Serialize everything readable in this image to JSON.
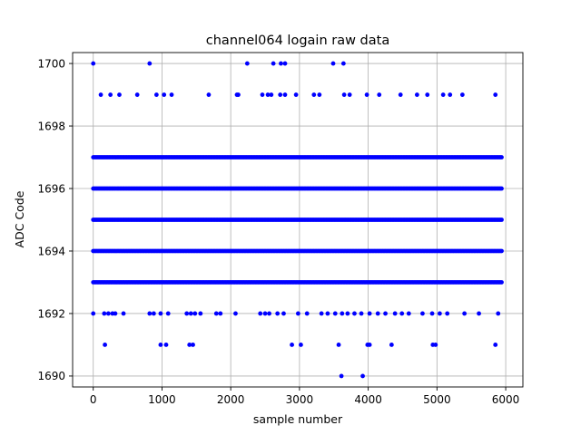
{
  "chart_data": {
    "type": "scatter",
    "title": "channel064 logain raw data",
    "xlabel": "sample number",
    "ylabel": "ADC Code",
    "xlim": [
      -300,
      6250
    ],
    "ylim": [
      1689.65,
      1700.35
    ],
    "xticks": [
      0,
      1000,
      2000,
      3000,
      4000,
      5000,
      6000
    ],
    "yticks": [
      1690,
      1692,
      1694,
      1696,
      1698,
      1700
    ],
    "grid": true,
    "marker_color": "#0000ff",
    "series": [
      {
        "name": "",
        "dense_levels": [
          {
            "y": 1693,
            "x_range": [
              0,
              5940
            ]
          },
          {
            "y": 1694,
            "x_range": [
              0,
              5940
            ]
          },
          {
            "y": 1695,
            "x_range": [
              0,
              5940
            ]
          },
          {
            "y": 1696,
            "x_range": [
              0,
              5940
            ]
          },
          {
            "y": 1697,
            "x_range": [
              0,
              5940
            ]
          }
        ],
        "points": [
          [
            0,
            1700
          ],
          [
            820,
            1700
          ],
          [
            2240,
            1700
          ],
          [
            2620,
            1700
          ],
          [
            2730,
            1700
          ],
          [
            2790,
            1700
          ],
          [
            3490,
            1700
          ],
          [
            3640,
            1700
          ],
          [
            110,
            1699
          ],
          [
            250,
            1699
          ],
          [
            380,
            1699
          ],
          [
            640,
            1699
          ],
          [
            920,
            1699
          ],
          [
            1030,
            1699
          ],
          [
            1140,
            1699
          ],
          [
            1680,
            1699
          ],
          [
            2090,
            1699
          ],
          [
            2110,
            1699
          ],
          [
            2460,
            1699
          ],
          [
            2540,
            1699
          ],
          [
            2590,
            1699
          ],
          [
            2720,
            1699
          ],
          [
            2790,
            1699
          ],
          [
            2950,
            1699
          ],
          [
            3210,
            1699
          ],
          [
            3290,
            1699
          ],
          [
            3650,
            1699
          ],
          [
            3730,
            1699
          ],
          [
            3980,
            1699
          ],
          [
            4160,
            1699
          ],
          [
            4470,
            1699
          ],
          [
            4710,
            1699
          ],
          [
            4860,
            1699
          ],
          [
            5090,
            1699
          ],
          [
            5190,
            1699
          ],
          [
            5370,
            1699
          ],
          [
            5850,
            1699
          ],
          [
            0,
            1692
          ],
          [
            160,
            1692
          ],
          [
            220,
            1692
          ],
          [
            280,
            1692
          ],
          [
            320,
            1692
          ],
          [
            440,
            1692
          ],
          [
            820,
            1692
          ],
          [
            880,
            1692
          ],
          [
            980,
            1692
          ],
          [
            1090,
            1692
          ],
          [
            1360,
            1692
          ],
          [
            1420,
            1692
          ],
          [
            1480,
            1692
          ],
          [
            1560,
            1692
          ],
          [
            1790,
            1692
          ],
          [
            1850,
            1692
          ],
          [
            2070,
            1692
          ],
          [
            2430,
            1692
          ],
          [
            2500,
            1692
          ],
          [
            2560,
            1692
          ],
          [
            2680,
            1692
          ],
          [
            2770,
            1692
          ],
          [
            2980,
            1692
          ],
          [
            3110,
            1692
          ],
          [
            3320,
            1692
          ],
          [
            3410,
            1692
          ],
          [
            3520,
            1692
          ],
          [
            3620,
            1692
          ],
          [
            3700,
            1692
          ],
          [
            3800,
            1692
          ],
          [
            3900,
            1692
          ],
          [
            4020,
            1692
          ],
          [
            4140,
            1692
          ],
          [
            4250,
            1692
          ],
          [
            4390,
            1692
          ],
          [
            4490,
            1692
          ],
          [
            4590,
            1692
          ],
          [
            4790,
            1692
          ],
          [
            4930,
            1692
          ],
          [
            5040,
            1692
          ],
          [
            5150,
            1692
          ],
          [
            5400,
            1692
          ],
          [
            5610,
            1692
          ],
          [
            5890,
            1692
          ],
          [
            170,
            1691
          ],
          [
            980,
            1691
          ],
          [
            1060,
            1691
          ],
          [
            1400,
            1691
          ],
          [
            1450,
            1691
          ],
          [
            2890,
            1691
          ],
          [
            3020,
            1691
          ],
          [
            3570,
            1691
          ],
          [
            3990,
            1691
          ],
          [
            4020,
            1691
          ],
          [
            4340,
            1691
          ],
          [
            4940,
            1691
          ],
          [
            4980,
            1691
          ],
          [
            5850,
            1691
          ],
          [
            3610,
            1690
          ],
          [
            3920,
            1690
          ]
        ]
      }
    ]
  }
}
